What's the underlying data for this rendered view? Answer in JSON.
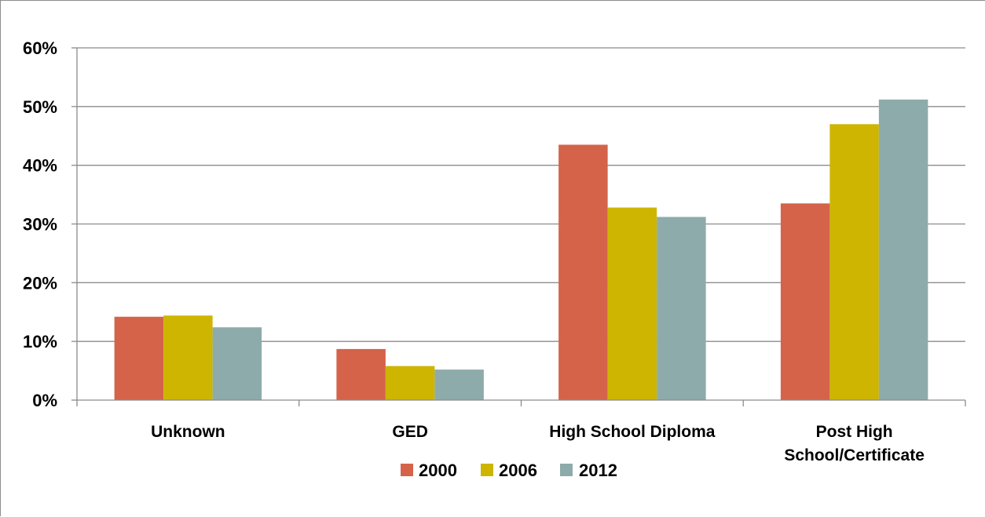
{
  "chart_data": {
    "type": "bar",
    "title": "",
    "xlabel": "",
    "ylabel": "",
    "categories": [
      "Unknown",
      "GED",
      "High School Diploma",
      "Post High School/Certificate"
    ],
    "category_lines": [
      [
        "Unknown"
      ],
      [
        "GED"
      ],
      [
        "High School Diploma"
      ],
      [
        "Post High",
        "School/Certificate"
      ]
    ],
    "series": [
      {
        "name": "2000",
        "values": [
          14.2,
          8.7,
          43.5,
          33.5
        ],
        "color": "#d4634a"
      },
      {
        "name": "2006",
        "values": [
          14.4,
          5.8,
          32.8,
          47.0
        ],
        "color": "#cdb502"
      },
      {
        "name": "2012",
        "values": [
          12.4,
          5.2,
          31.2,
          51.2
        ],
        "color": "#8eabab"
      }
    ],
    "ylim": [
      0,
      60
    ],
    "yticks": [
      0,
      10,
      20,
      30,
      40,
      50,
      60
    ],
    "ytick_labels": [
      "0%",
      "10%",
      "20%",
      "30%",
      "40%",
      "50%",
      "60%"
    ],
    "grid": true,
    "legend_position": "bottom-center"
  }
}
